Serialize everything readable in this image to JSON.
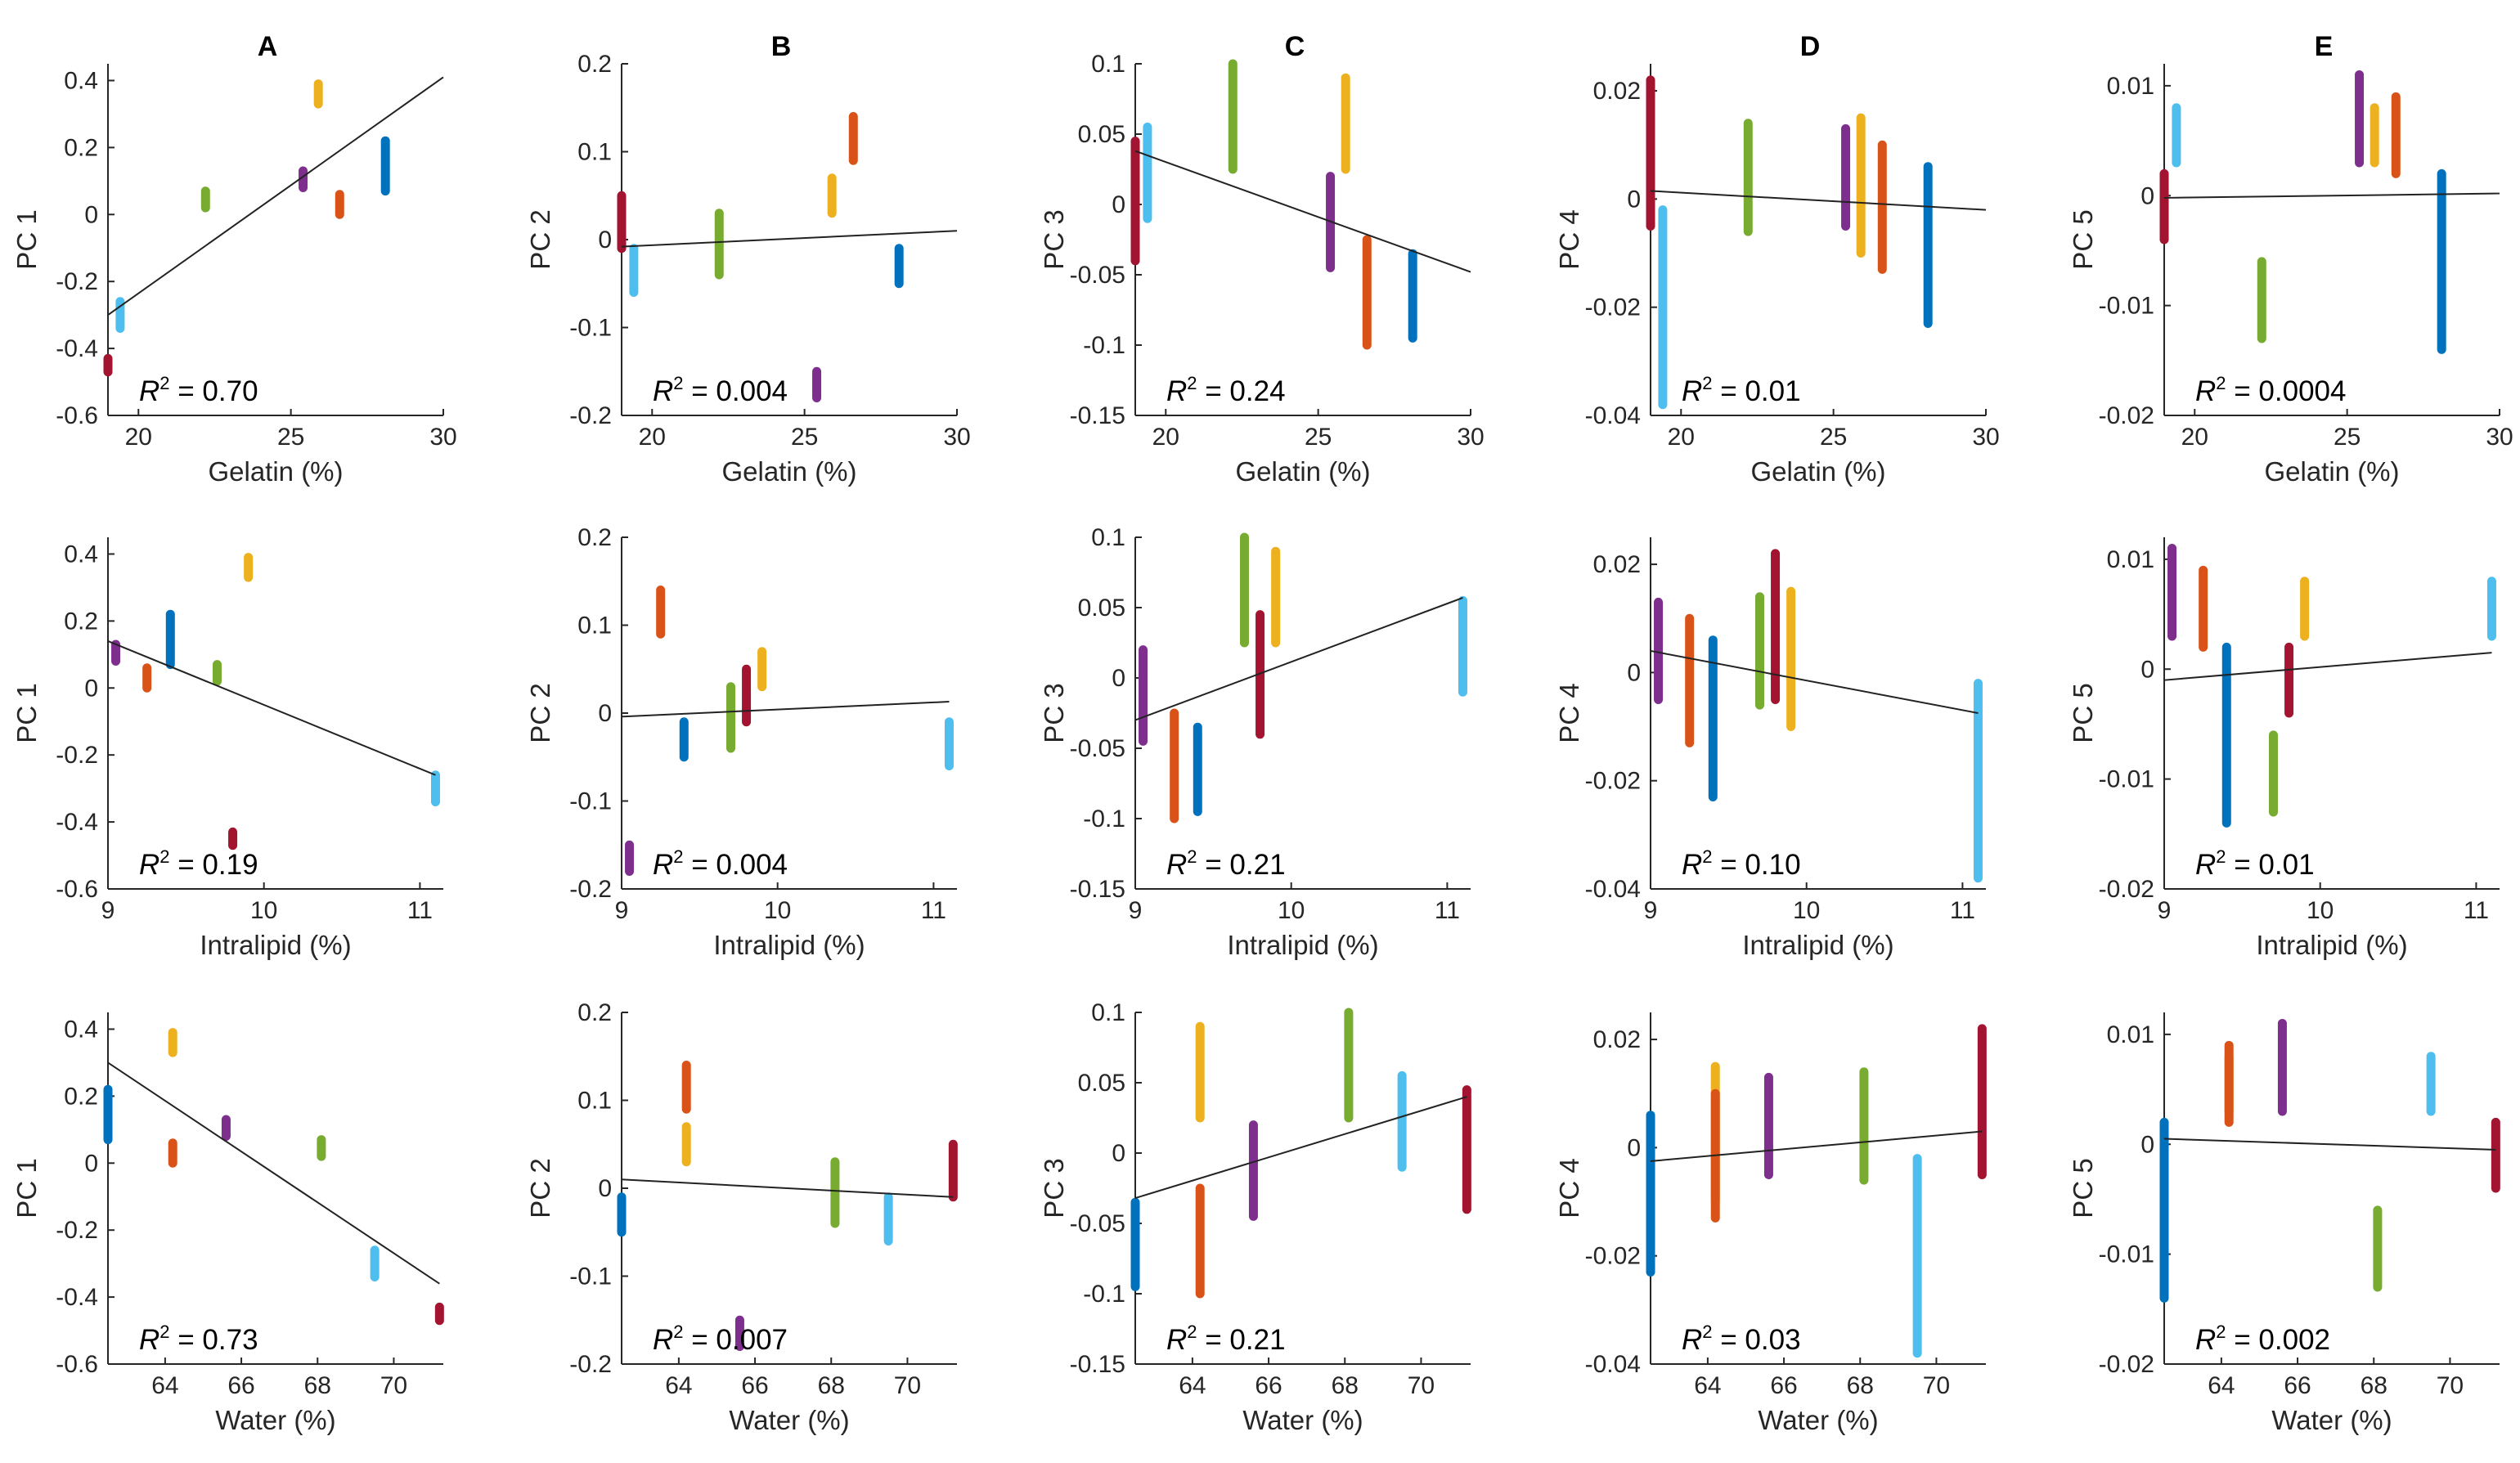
{
  "chart_data": {
    "type": "scatter",
    "layout": "3 rows x 5 columns grid of scatter plots with linear fit lines",
    "column_labels": [
      "A",
      "B",
      "C",
      "D",
      "E"
    ],
    "series_colors": {
      "s1": "#A2142F",
      "s2": "#4DBEEE",
      "s3": "#77AC30",
      "s4": "#7E2F8E",
      "s5": "#EDB120",
      "s6": "#D95319",
      "s7": "#0072BD"
    },
    "sample_composition": {
      "s1": {
        "gelatin": 19.0,
        "intralipid": 9.8,
        "water": 71.2
      },
      "s2": {
        "gelatin": 19.4,
        "intralipid": 11.1,
        "water": 69.5
      },
      "s3": {
        "gelatin": 22.2,
        "intralipid": 9.7,
        "water": 68.1
      },
      "s4": {
        "gelatin": 25.4,
        "intralipid": 9.05,
        "water": 65.6
      },
      "s5": {
        "gelatin": 25.9,
        "intralipid": 9.9,
        "water": 64.2
      },
      "s6": {
        "gelatin": 26.6,
        "intralipid": 9.25,
        "water": 64.2
      },
      "s7": {
        "gelatin": 28.1,
        "intralipid": 9.4,
        "water": 62.5
      }
    },
    "rows": [
      {
        "variable": "gelatin",
        "xlabel": "Gelatin (%)",
        "xlim": [
          19,
          30
        ],
        "xticks": [
          20,
          25,
          30
        ],
        "tick_labels": [
          "20",
          "25",
          "30"
        ]
      },
      {
        "variable": "intralipid",
        "xlabel": "Intralipid (%)",
        "xlim": [
          9,
          11.15
        ],
        "xticks": [
          9,
          10,
          11
        ],
        "tick_labels": [
          "9",
          "10",
          "11"
        ]
      },
      {
        "variable": "water",
        "xlabel": "Water (%)",
        "xlim": [
          62.5,
          71.3
        ],
        "xticks": [
          64,
          66,
          68,
          70
        ],
        "tick_labels": [
          "64",
          "66",
          "68",
          "70"
        ]
      }
    ],
    "columns": [
      {
        "ylabel": "PC 1",
        "ylim": [
          -0.6,
          0.45
        ],
        "yticks": [
          -0.6,
          -0.4,
          -0.2,
          0,
          0.2,
          0.4
        ],
        "ytick_labels": [
          "-0.6",
          "-0.4",
          "-0.2",
          "0",
          "0.2",
          "0.4"
        ],
        "ranges": {
          "s1": [
            -0.47,
            -0.43
          ],
          "s2": [
            -0.34,
            -0.26
          ],
          "s3": [
            0.02,
            0.07
          ],
          "s4": [
            0.08,
            0.13
          ],
          "s5": [
            0.33,
            0.39
          ],
          "s6": [
            0.0,
            0.06
          ],
          "s7": [
            0.07,
            0.22
          ]
        },
        "fits": [
          {
            "x": [
              19,
              30
            ],
            "y": [
              -0.3,
              0.41
            ]
          },
          {
            "x": [
              9,
              11.1
            ],
            "y": [
              0.14,
              -0.26
            ]
          },
          {
            "x": [
              62.5,
              71.2
            ],
            "y": [
              0.3,
              -0.36
            ]
          }
        ],
        "r2": [
          "0.70",
          "0.19",
          "0.73"
        ]
      },
      {
        "ylabel": "PC 2",
        "ylim": [
          -0.2,
          0.2
        ],
        "yticks": [
          -0.2,
          -0.1,
          0,
          0.1,
          0.2
        ],
        "ytick_labels": [
          "-0.2",
          "-0.1",
          "0",
          "0.1",
          "0.2"
        ],
        "ranges": {
          "s1": [
            -0.01,
            0.05
          ],
          "s2": [
            -0.06,
            -0.01
          ],
          "s3": [
            -0.04,
            0.03
          ],
          "s4": [
            -0.18,
            -0.15
          ],
          "s5": [
            0.03,
            0.07
          ],
          "s6": [
            0.09,
            0.14
          ],
          "s7": [
            -0.05,
            -0.01
          ]
        },
        "fits": [
          {
            "x": [
              19,
              30
            ],
            "y": [
              -0.008,
              0.01
            ]
          },
          {
            "x": [
              9,
              11.1
            ],
            "y": [
              -0.004,
              0.013
            ]
          },
          {
            "x": [
              62.5,
              71.2
            ],
            "y": [
              0.01,
              -0.01
            ]
          }
        ],
        "r2": [
          "0.004",
          "0.004",
          "0.007"
        ]
      },
      {
        "ylabel": "PC 3",
        "ylim": [
          -0.15,
          0.1
        ],
        "yticks": [
          -0.15,
          -0.1,
          -0.05,
          0,
          0.05,
          0.1
        ],
        "ytick_labels": [
          "-0.15",
          "-0.1",
          "-0.05",
          "0",
          "0.05",
          "0.1"
        ],
        "ranges": {
          "s1": [
            -0.04,
            0.045
          ],
          "s2": [
            -0.01,
            0.055
          ],
          "s3": [
            0.025,
            0.1
          ],
          "s4": [
            -0.045,
            0.02
          ],
          "s5": [
            0.025,
            0.09
          ],
          "s6": [
            -0.1,
            -0.025
          ],
          "s7": [
            -0.095,
            -0.035
          ]
        },
        "fits": [
          {
            "x": [
              19,
              30
            ],
            "y": [
              0.038,
              -0.048
            ]
          },
          {
            "x": [
              9,
              11.1
            ],
            "y": [
              -0.03,
              0.057
            ]
          },
          {
            "x": [
              62.5,
              71.2
            ],
            "y": [
              -0.032,
              0.04
            ]
          }
        ],
        "r2": [
          "0.24",
          "0.21",
          "0.21"
        ]
      },
      {
        "ylabel": "PC 4",
        "ylim": [
          -0.04,
          0.025
        ],
        "yticks": [
          -0.04,
          -0.02,
          0,
          0.02
        ],
        "ytick_labels": [
          "-0.04",
          "-0.02",
          "0",
          "0.02"
        ],
        "ranges": {
          "s1": [
            -0.005,
            0.022
          ],
          "s2": [
            -0.038,
            -0.002
          ],
          "s3": [
            -0.006,
            0.014
          ],
          "s4": [
            -0.005,
            0.013
          ],
          "s5": [
            -0.01,
            0.015
          ],
          "s6": [
            -0.013,
            0.01
          ],
          "s7": [
            -0.023,
            0.006
          ]
        },
        "fits": [
          {
            "x": [
              19,
              30
            ],
            "y": [
              0.0015,
              -0.002
            ]
          },
          {
            "x": [
              9,
              11.1
            ],
            "y": [
              0.004,
              -0.0075
            ]
          },
          {
            "x": [
              62.5,
              71.2
            ],
            "y": [
              -0.0025,
              0.003
            ]
          }
        ],
        "r2": [
          "0.01",
          "0.10",
          "0.03"
        ]
      },
      {
        "ylabel": "PC 5",
        "ylim": [
          -0.02,
          0.012
        ],
        "yticks": [
          -0.02,
          -0.01,
          0,
          0.01
        ],
        "ytick_labels": [
          "-0.02",
          "-0.01",
          "0",
          "0.01"
        ],
        "ranges": {
          "s1": [
            -0.004,
            0.002
          ],
          "s2": [
            0.003,
            0.008
          ],
          "s3": [
            -0.013,
            -0.006
          ],
          "s4": [
            0.003,
            0.011
          ],
          "s5": [
            0.003,
            0.008
          ],
          "s6": [
            0.002,
            0.009
          ],
          "s7": [
            -0.014,
            0.002
          ]
        },
        "fits": [
          {
            "x": [
              19,
              30
            ],
            "y": [
              -0.0002,
              0.0002
            ]
          },
          {
            "x": [
              9,
              11.1
            ],
            "y": [
              -0.001,
              0.0015
            ]
          },
          {
            "x": [
              62.5,
              71.2
            ],
            "y": [
              0.0005,
              -0.0005
            ]
          }
        ],
        "r2": [
          "0.0004",
          "0.01",
          "0.002"
        ]
      }
    ]
  }
}
